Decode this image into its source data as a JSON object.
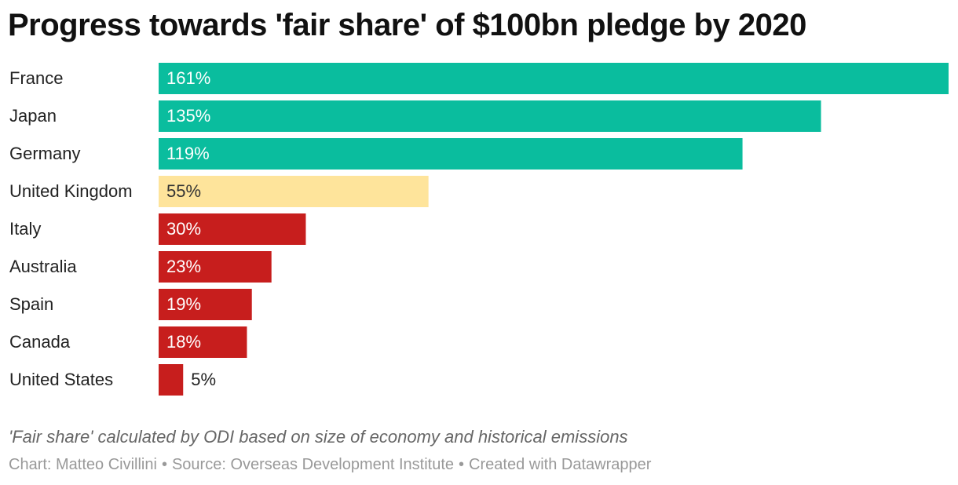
{
  "chart_data": {
    "type": "bar",
    "orientation": "horizontal",
    "title": "Progress towards 'fair share' of $100bn pledge by 2020",
    "categories": [
      "France",
      "Japan",
      "Germany",
      "United Kingdom",
      "Italy",
      "Australia",
      "Spain",
      "Canada",
      "United States"
    ],
    "values": [
      161,
      135,
      119,
      55,
      30,
      23,
      19,
      18,
      5
    ],
    "value_labels": [
      "161%",
      "135%",
      "119%",
      "55%",
      "30%",
      "23%",
      "19%",
      "18%",
      "5%"
    ],
    "unit": "%",
    "xlim": [
      0,
      161
    ],
    "colors": [
      "#0abd9e",
      "#0abd9e",
      "#0abd9e",
      "#fee49b",
      "#c71e1d",
      "#c71e1d",
      "#c71e1d",
      "#c71e1d",
      "#c71e1d"
    ],
    "label_colors": [
      "#ffffff",
      "#ffffff",
      "#ffffff",
      "#333333",
      "#ffffff",
      "#ffffff",
      "#ffffff",
      "#ffffff",
      "#222222"
    ],
    "grid": false,
    "legend": "none",
    "xlabel": "",
    "ylabel": ""
  },
  "note": "'Fair share' calculated by ODI based on size of economy and historical emissions",
  "footer": {
    "chart_by": "Chart: Matteo Civillini",
    "source": "Source: Overseas Development Institute",
    "created": "Created with Datawrapper",
    "separator": "•"
  }
}
